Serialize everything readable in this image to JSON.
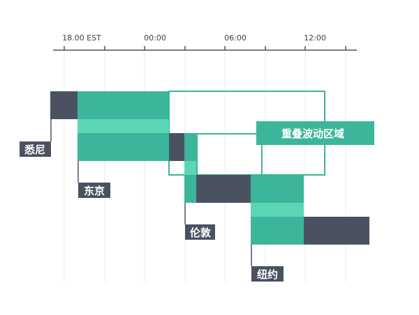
{
  "timeline": {
    "tick_labels": [
      "18.00 EST",
      "00:00",
      "06:00",
      "12:00"
    ]
  },
  "sessions": [
    {
      "name": "悉尼",
      "tag_color": "#4a5262"
    },
    {
      "name": "东京",
      "tag_color": "#4a5262"
    },
    {
      "name": "伦敦",
      "tag_color": "#4a5262"
    },
    {
      "name": "纽约",
      "tag_color": "#4a5262"
    }
  ],
  "overlap_label": "重叠波动区域",
  "colors": {
    "session_dark": "#4a5262",
    "session_green": "#3bb69a",
    "overlap_light": "#5cd6b5",
    "grid": "#e8e8e8",
    "axis": "#4a5262",
    "outline": "#3bb69a"
  }
}
